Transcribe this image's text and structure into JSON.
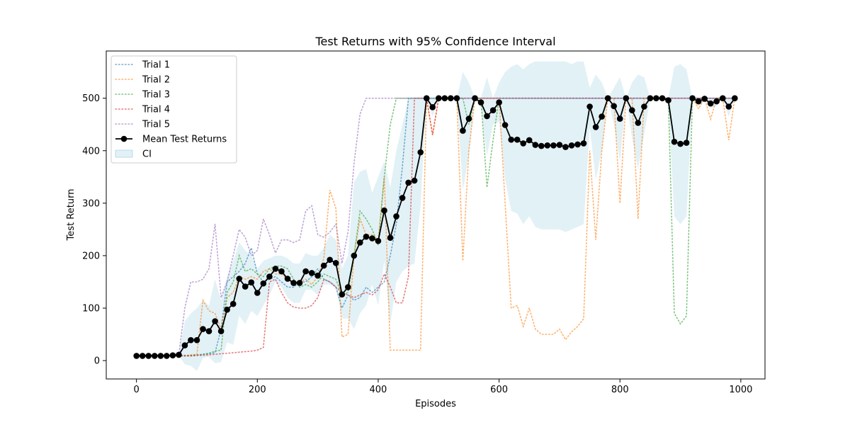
{
  "chart_data": {
    "type": "line",
    "title": "Test Returns with 95% Confidence Interval",
    "xlabel": "Episodes",
    "ylabel": "Test Return",
    "xlim": [
      -50,
      1040
    ],
    "ylim": [
      -35,
      590
    ],
    "xticks": [
      0,
      200,
      400,
      600,
      800,
      1000
    ],
    "yticks": [
      0,
      100,
      200,
      300,
      400,
      500
    ],
    "grid": false,
    "legend_position": "top-left",
    "x": [
      0,
      10,
      20,
      30,
      40,
      50,
      60,
      70,
      80,
      90,
      100,
      110,
      120,
      130,
      140,
      150,
      160,
      170,
      180,
      190,
      200,
      210,
      220,
      230,
      240,
      250,
      260,
      270,
      280,
      290,
      300,
      310,
      320,
      330,
      340,
      350,
      360,
      370,
      380,
      390,
      400,
      410,
      420,
      430,
      440,
      450,
      460,
      470,
      480,
      490,
      500,
      510,
      520,
      530,
      540,
      550,
      560,
      570,
      580,
      590,
      600,
      610,
      620,
      630,
      640,
      650,
      660,
      670,
      680,
      690,
      700,
      710,
      720,
      730,
      740,
      750,
      760,
      770,
      780,
      790,
      800,
      810,
      820,
      830,
      840,
      850,
      860,
      870,
      880,
      890,
      900,
      910,
      920,
      930,
      940,
      950,
      960,
      970,
      980,
      990
    ],
    "series": [
      {
        "name": "Trial 1",
        "color": "#1f77b4",
        "style": "dotted",
        "values": [
          9,
          9,
          9,
          9,
          9,
          9,
          10,
          10,
          10,
          10,
          11,
          12,
          13,
          15,
          60,
          150,
          160,
          170,
          185,
          215,
          165,
          150,
          155,
          160,
          150,
          140,
          140,
          150,
          150,
          160,
          175,
          155,
          150,
          140,
          100,
          125,
          115,
          120,
          140,
          130,
          140,
          150,
          200,
          260,
          370,
          500,
          500,
          500,
          500,
          500,
          500,
          500,
          500,
          500,
          500,
          500,
          500,
          500,
          500,
          500,
          500,
          500,
          500,
          500,
          500,
          500,
          500,
          500,
          500,
          500,
          500,
          500,
          500,
          500,
          500,
          500,
          500,
          500,
          500,
          500,
          500,
          500,
          500,
          500,
          500,
          500,
          500,
          500,
          500,
          500,
          500,
          500,
          500,
          500,
          500,
          500,
          500,
          500,
          500,
          500
        ]
      },
      {
        "name": "Trial 2",
        "color": "#ff7f0e",
        "style": "dotted",
        "values": [
          9,
          9,
          9,
          9,
          9,
          9,
          9,
          9,
          9,
          11,
          12,
          115,
          95,
          90,
          60,
          120,
          130,
          160,
          155,
          160,
          155,
          170,
          175,
          165,
          165,
          155,
          145,
          150,
          155,
          145,
          160,
          195,
          325,
          290,
          45,
          50,
          200,
          270,
          240,
          240,
          230,
          350,
          20,
          20,
          20,
          20,
          20,
          20,
          500,
          430,
          500,
          500,
          500,
          500,
          190,
          400,
          500,
          500,
          500,
          500,
          500,
          300,
          100,
          105,
          65,
          100,
          60,
          50,
          50,
          50,
          60,
          40,
          55,
          65,
          80,
          400,
          230,
          400,
          500,
          500,
          300,
          500,
          500,
          270,
          500,
          500,
          500,
          500,
          500,
          500,
          500,
          500,
          500,
          480,
          500,
          460,
          500,
          500,
          420,
          500
        ]
      },
      {
        "name": "Trial 3",
        "color": "#2ca02c",
        "style": "dotted",
        "values": [
          9,
          9,
          9,
          9,
          9,
          9,
          9,
          9,
          9,
          9,
          10,
          12,
          14,
          18,
          20,
          130,
          150,
          200,
          170,
          175,
          165,
          160,
          175,
          180,
          180,
          175,
          155,
          140,
          145,
          140,
          150,
          165,
          160,
          155,
          125,
          130,
          200,
          285,
          270,
          250,
          220,
          350,
          450,
          500,
          500,
          500,
          500,
          500,
          500,
          500,
          500,
          500,
          500,
          500,
          500,
          450,
          500,
          500,
          330,
          420,
          500,
          500,
          500,
          500,
          500,
          500,
          500,
          500,
          500,
          500,
          500,
          500,
          500,
          500,
          500,
          500,
          500,
          500,
          500,
          500,
          500,
          500,
          500,
          500,
          500,
          500,
          500,
          500,
          500,
          90,
          70,
          85,
          500,
          500,
          500,
          500,
          500,
          500,
          500,
          500
        ]
      },
      {
        "name": "Trial 4",
        "color": "#d62728",
        "style": "dotted",
        "values": [
          9,
          9,
          9,
          9,
          9,
          9,
          9,
          9,
          9,
          9,
          10,
          10,
          11,
          12,
          13,
          14,
          15,
          16,
          17,
          18,
          20,
          25,
          150,
          155,
          130,
          110,
          102,
          100,
          100,
          105,
          120,
          155,
          150,
          140,
          130,
          125,
          120,
          125,
          130,
          125,
          135,
          165,
          140,
          110,
          110,
          160,
          500,
          500,
          500,
          430,
          500,
          500,
          500,
          500,
          500,
          500,
          500,
          500,
          500,
          500,
          500,
          500,
          500,
          500,
          500,
          500,
          500,
          500,
          500,
          500,
          500,
          500,
          500,
          500,
          500,
          500,
          500,
          500,
          500,
          500,
          500,
          500,
          500,
          500,
          500,
          500,
          500,
          500,
          500,
          500,
          500,
          500,
          500,
          500,
          500,
          500,
          500,
          500,
          500,
          500
        ]
      },
      {
        "name": "Trial 5",
        "color": "#9467bd",
        "style": "dotted",
        "values": [
          9,
          9,
          9,
          9,
          9,
          9,
          9,
          11,
          100,
          150,
          150,
          155,
          175,
          260,
          120,
          150,
          200,
          250,
          235,
          200,
          210,
          270,
          240,
          205,
          230,
          230,
          225,
          230,
          285,
          295,
          240,
          235,
          245,
          260,
          185,
          245,
          375,
          470,
          500,
          500,
          500,
          500,
          500,
          500,
          500,
          500,
          500,
          500,
          500,
          500,
          500,
          500,
          500,
          500,
          500,
          500,
          500,
          500,
          500,
          500,
          500,
          500,
          500,
          500,
          500,
          500,
          500,
          500,
          500,
          500,
          500,
          500,
          500,
          500,
          500,
          500,
          500,
          500,
          500,
          500,
          500,
          500,
          500,
          500,
          500,
          500,
          500,
          500,
          500,
          500,
          500,
          500,
          500,
          500,
          500,
          500,
          500,
          500,
          500,
          500
        ]
      },
      {
        "name": "Mean Test Returns",
        "color": "#000000",
        "style": "solid-marker",
        "values": [
          9,
          9,
          9,
          9,
          9,
          9,
          10,
          11,
          29,
          39,
          39,
          60,
          56,
          75,
          56,
          97,
          108,
          156,
          141,
          149,
          129,
          147,
          160,
          175,
          170,
          156,
          148,
          148,
          170,
          167,
          162,
          181,
          192,
          186,
          126,
          140,
          200,
          225,
          236,
          233,
          228,
          286,
          234,
          275,
          310,
          339,
          343,
          397,
          500,
          483,
          500,
          500,
          500,
          500,
          438,
          461,
          500,
          492,
          466,
          477,
          492,
          449,
          421,
          421,
          414,
          420,
          411,
          409,
          410,
          410,
          411,
          407,
          410,
          412,
          414,
          484,
          445,
          465,
          500,
          485,
          461,
          500,
          477,
          453,
          484,
          500,
          500,
          500,
          496,
          417,
          413,
          415,
          500,
          494,
          499,
          490,
          494,
          500,
          484,
          500
        ]
      }
    ],
    "ci": {
      "name": "CI",
      "color": "#add8e6",
      "upper": [
        9,
        9,
        9,
        9,
        9,
        9,
        11,
        12,
        75,
        90,
        100,
        115,
        105,
        155,
        115,
        160,
        190,
        225,
        210,
        200,
        175,
        190,
        195,
        200,
        200,
        195,
        185,
        185,
        205,
        200,
        200,
        215,
        240,
        230,
        175,
        200,
        340,
        360,
        365,
        320,
        350,
        380,
        330,
        400,
        450,
        500,
        500,
        500,
        500,
        500,
        500,
        500,
        500,
        500,
        550,
        530,
        500,
        500,
        540,
        500,
        530,
        550,
        560,
        565,
        555,
        565,
        570,
        570,
        570,
        570,
        570,
        570,
        565,
        570,
        570,
        520,
        545,
        530,
        500,
        520,
        540,
        500,
        530,
        545,
        540,
        500,
        500,
        500,
        500,
        560,
        565,
        555,
        500,
        500,
        500,
        500,
        500,
        500,
        500,
        500
      ],
      "lower": [
        9,
        9,
        9,
        9,
        9,
        9,
        9,
        9,
        -7,
        -10,
        -20,
        5,
        7,
        -5,
        -3,
        35,
        30,
        85,
        70,
        95,
        85,
        105,
        125,
        150,
        140,
        120,
        110,
        110,
        135,
        135,
        125,
        145,
        145,
        140,
        80,
        80,
        60,
        90,
        105,
        145,
        105,
        190,
        70,
        150,
        170,
        180,
        185,
        295,
        500,
        465,
        500,
        500,
        500,
        500,
        325,
        390,
        500,
        480,
        390,
        450,
        455,
        345,
        285,
        280,
        260,
        275,
        255,
        250,
        250,
        250,
        250,
        245,
        250,
        255,
        260,
        445,
        345,
        400,
        500,
        450,
        380,
        500,
        425,
        365,
        430,
        500,
        500,
        500,
        490,
        275,
        260,
        275,
        500,
        485,
        495,
        480,
        485,
        500,
        465,
        500
      ]
    },
    "legend": [
      "Trial 1",
      "Trial 2",
      "Trial 3",
      "Trial 4",
      "Trial 5",
      "Mean Test Returns",
      "CI"
    ]
  }
}
